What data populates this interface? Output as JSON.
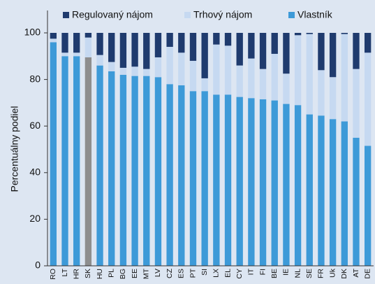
{
  "chart_data": {
    "type": "stacked_bar",
    "ylabel": "Percentuálny podiel",
    "categories": [
      "RO",
      "LT",
      "HR",
      "SK",
      "HU",
      "PL",
      "BG",
      "EE",
      "MT",
      "LV",
      "CZ",
      "ES",
      "PT",
      "SI",
      "LX",
      "EL",
      "CY",
      "IT",
      "FI",
      "BE",
      "IE",
      "NL",
      "SE",
      "FR",
      "Uk",
      "DK",
      "AT",
      "DE"
    ],
    "series": [
      {
        "name": "Regulovaný nájom",
        "color": "#1f3b6e",
        "values": [
          2.5,
          8.5,
          8.5,
          2,
          9.5,
          12.5,
          15,
          14.5,
          15.5,
          10.5,
          6,
          8.5,
          12,
          19.5,
          5,
          5.5,
          14,
          11,
          15.5,
          9,
          17.5,
          1,
          0.5,
          16,
          19,
          0.5,
          15.5,
          8.5
        ]
      },
      {
        "name": "Trhový nájom",
        "color": "#c6d9f1",
        "values": [
          1.5,
          1.5,
          1.5,
          8.5,
          4.5,
          4,
          3,
          4,
          3,
          8.5,
          16,
          14,
          13,
          5.5,
          21.5,
          21,
          13.5,
          17,
          13,
          20,
          13,
          30,
          34.5,
          19.5,
          18,
          37.5,
          29.5,
          40
        ]
      },
      {
        "name": "Vlastník",
        "color": "#3d9ad8",
        "point_colors": {
          "3": "#8e8e8e"
        },
        "values": [
          96,
          90,
          90,
          89.5,
          86,
          83.5,
          82,
          81.5,
          81.5,
          81,
          78,
          77.5,
          75,
          75,
          73.5,
          73.5,
          72.5,
          72,
          71.5,
          71,
          69.5,
          69,
          65,
          64.5,
          63,
          62,
          55,
          51.5
        ]
      }
    ],
    "ylim": [
      0,
      100
    ],
    "yticks": [
      0,
      20,
      40,
      60,
      80,
      100
    ],
    "grid": false,
    "legend": "top"
  }
}
